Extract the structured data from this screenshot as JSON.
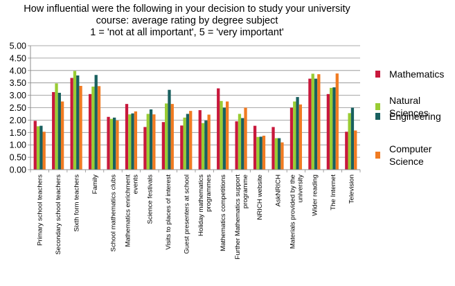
{
  "chart_data": {
    "type": "bar",
    "title_lines": [
      "How influential were the following in your decision to study your university",
      "course: average rating by degree subject",
      "1 = 'not at all important', 5 = 'very important'"
    ],
    "ylim": [
      0,
      5
    ],
    "yticks": [
      "0.00",
      "0.50",
      "1.00",
      "1.50",
      "2.00",
      "2.50",
      "3.00",
      "3.50",
      "4.00",
      "4.50",
      "5.00"
    ],
    "grid": true,
    "legend_position": "right",
    "categories": [
      [
        "Primary school teachers"
      ],
      [
        "Secondary school teachers"
      ],
      [
        "Sixth form teachers"
      ],
      [
        "Family"
      ],
      [
        "School mathematics clubs"
      ],
      [
        "Mathematics enrichment",
        "events"
      ],
      [
        "Science festivals"
      ],
      [
        "Visits to places of interest"
      ],
      [
        "Guest presenters at school"
      ],
      [
        "Holiday mathematics",
        "programmes"
      ],
      [
        "Mathematics competitions"
      ],
      [
        "Further Mathematics support",
        "programme"
      ],
      [
        "NRICH website"
      ],
      [
        "AskNRICH"
      ],
      [
        "Materials provided by the",
        "university"
      ],
      [
        "Wider reading"
      ],
      [
        "The Internet"
      ],
      [
        "Television"
      ]
    ],
    "series": [
      {
        "name": "Mathematics",
        "legend_lines": [
          "Mathematics"
        ],
        "color": "#c8183c",
        "values": [
          1.97,
          3.13,
          3.7,
          3.05,
          2.13,
          2.65,
          1.72,
          1.92,
          1.78,
          2.4,
          3.28,
          1.95,
          1.77,
          1.72,
          2.5,
          3.67,
          3.05,
          1.53
        ]
      },
      {
        "name": "Natural Sciences",
        "legend_lines": [
          "Natural",
          "Sciences"
        ],
        "color": "#99cc33",
        "values": [
          1.75,
          3.48,
          3.98,
          3.35,
          2.05,
          2.23,
          2.25,
          2.67,
          2.1,
          1.88,
          2.77,
          2.25,
          1.32,
          1.27,
          2.75,
          3.87,
          3.3,
          2.28
        ]
      },
      {
        "name": "Engineering",
        "legend_lines": [
          "Engineering"
        ],
        "color": "#19605f",
        "values": [
          1.77,
          3.1,
          3.8,
          3.82,
          2.1,
          2.27,
          2.43,
          3.22,
          2.25,
          1.98,
          2.5,
          2.08,
          1.33,
          1.27,
          2.93,
          3.67,
          3.32,
          2.5
        ]
      },
      {
        "name": "Computer Science",
        "legend_lines": [
          "Computer",
          "Science"
        ],
        "color": "#f07b22",
        "values": [
          1.53,
          2.75,
          3.38,
          3.37,
          1.98,
          2.35,
          2.23,
          2.65,
          2.37,
          2.22,
          2.75,
          2.5,
          1.37,
          1.1,
          2.63,
          3.85,
          3.88,
          1.58
        ]
      }
    ]
  }
}
